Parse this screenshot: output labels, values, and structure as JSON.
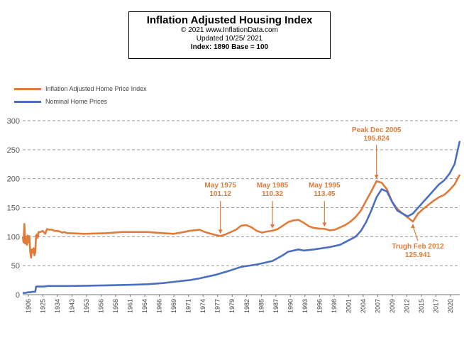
{
  "header": {
    "title": "Inflation Adjusted Housing Index",
    "copyright": "© 2021  www.InflationData.com",
    "updated": "Updated  10/25/ 2021",
    "index_base": "Index: 1890 Base = 100"
  },
  "colors": {
    "real": "#e07b39",
    "nominal": "#4a6fc2",
    "grid": "#9a9a9a"
  },
  "chart_data": {
    "type": "line",
    "ylim": [
      0,
      300
    ],
    "yticks": [
      0,
      50,
      100,
      150,
      200,
      250,
      300
    ],
    "xlim": [
      1890,
      2021
    ],
    "xtick_labels": [
      "1906",
      "1925",
      "1934",
      "1943",
      "1953",
      "1956",
      "1958",
      "1961",
      "1964",
      "1966",
      "1969",
      "1971",
      "1974",
      "1977",
      "1979",
      "1982",
      "1985",
      "1987",
      "1990",
      "1993",
      "1996",
      "1998",
      "2001",
      "2004",
      "2007",
      "2009",
      "2012",
      "2015",
      "2017",
      "2020"
    ],
    "grid": "horizontal dashed",
    "legend_position": "top-left",
    "series": [
      {
        "name": "Inflation Adjusted Home Price Index",
        "color": "#e07b39",
        "points": [
          [
            1890,
            100
          ],
          [
            1891,
            90
          ],
          [
            1892,
            122
          ],
          [
            1893,
            88
          ],
          [
            1894,
            100
          ],
          [
            1895,
            86
          ],
          [
            1896,
            102
          ],
          [
            1897,
            90
          ],
          [
            1898,
            101
          ],
          [
            1899,
            74
          ],
          [
            1900,
            64
          ],
          [
            1901,
            78
          ],
          [
            1902,
            73
          ],
          [
            1903,
            80
          ],
          [
            1904,
            68
          ],
          [
            1905,
            73
          ],
          [
            1906,
            102
          ],
          [
            1907,
            104
          ],
          [
            1908,
            98
          ],
          [
            1909,
            108
          ],
          [
            1911,
            108
          ],
          [
            1914,
            110
          ],
          [
            1917,
            105
          ],
          [
            1919,
            113
          ],
          [
            1922,
            112
          ],
          [
            1925,
            112
          ],
          [
            1928,
            110
          ],
          [
            1931,
            110
          ],
          [
            1934,
            109
          ],
          [
            1937,
            107
          ],
          [
            1940,
            108
          ],
          [
            1943,
            106
          ],
          [
            1946,
            106
          ],
          [
            1949,
            105
          ],
          [
            1953,
            106
          ],
          [
            1956,
            108
          ],
          [
            1958,
            108
          ],
          [
            1961,
            108
          ],
          [
            1964,
            106
          ],
          [
            1966,
            105
          ],
          [
            1968,
            108
          ],
          [
            1969,
            110
          ],
          [
            1971,
            112
          ],
          [
            1972,
            108
          ],
          [
            1974,
            103
          ],
          [
            1975,
            101.12
          ],
          [
            1976,
            104
          ],
          [
            1978,
            112
          ],
          [
            1979,
            119
          ],
          [
            1980,
            120
          ],
          [
            1981,
            116
          ],
          [
            1982,
            110
          ],
          [
            1983,
            107
          ],
          [
            1984,
            109
          ],
          [
            1985,
            110.32
          ],
          [
            1986,
            113
          ],
          [
            1987,
            119
          ],
          [
            1988,
            125
          ],
          [
            1989,
            128
          ],
          [
            1990,
            129
          ],
          [
            1991,
            124
          ],
          [
            1992,
            118
          ],
          [
            1993,
            115
          ],
          [
            1994,
            114
          ],
          [
            1995,
            113.45
          ],
          [
            1996,
            111
          ],
          [
            1997,
            112
          ],
          [
            1998,
            116
          ],
          [
            1999,
            120
          ],
          [
            2000,
            126
          ],
          [
            2001,
            134
          ],
          [
            2002,
            145
          ],
          [
            2003,
            162
          ],
          [
            2004,
            178
          ],
          [
            2005,
            195.824
          ],
          [
            2006,
            193
          ],
          [
            2007,
            182
          ],
          [
            2008,
            160
          ],
          [
            2009,
            148
          ],
          [
            2010,
            140
          ],
          [
            2011,
            133
          ],
          [
            2012,
            125.941
          ],
          [
            2013,
            140
          ],
          [
            2014,
            148
          ],
          [
            2015,
            155
          ],
          [
            2016,
            162
          ],
          [
            2017,
            168
          ],
          [
            2018,
            172
          ],
          [
            2019,
            180
          ],
          [
            2020,
            190
          ],
          [
            2021,
            207
          ]
        ]
      },
      {
        "name": "Nominal Home Prices",
        "color": "#4a6fc2",
        "points": [
          [
            1890,
            3
          ],
          [
            1893,
            3
          ],
          [
            1896,
            4
          ],
          [
            1899,
            4
          ],
          [
            1902,
            5
          ],
          [
            1905,
            5
          ],
          [
            1906,
            14
          ],
          [
            1910,
            14
          ],
          [
            1915,
            14
          ],
          [
            1920,
            15
          ],
          [
            1925,
            15
          ],
          [
            1930,
            15
          ],
          [
            1935,
            15
          ],
          [
            1940,
            15
          ],
          [
            1946,
            15
          ],
          [
            1953,
            16
          ],
          [
            1958,
            17
          ],
          [
            1961,
            18
          ],
          [
            1964,
            20
          ],
          [
            1966,
            22
          ],
          [
            1969,
            25
          ],
          [
            1971,
            28
          ],
          [
            1974,
            34
          ],
          [
            1977,
            42
          ],
          [
            1979,
            48
          ],
          [
            1982,
            52
          ],
          [
            1985,
            58
          ],
          [
            1987,
            68
          ],
          [
            1988,
            74
          ],
          [
            1990,
            78
          ],
          [
            1991,
            76
          ],
          [
            1993,
            78
          ],
          [
            1996,
            82
          ],
          [
            1998,
            86
          ],
          [
            2001,
            100
          ],
          [
            2002,
            110
          ],
          [
            2003,
            125
          ],
          [
            2004,
            145
          ],
          [
            2005,
            168
          ],
          [
            2006,
            182
          ],
          [
            2007,
            178
          ],
          [
            2008,
            160
          ],
          [
            2009,
            145
          ],
          [
            2010,
            140
          ],
          [
            2011,
            135
          ],
          [
            2012,
            140
          ],
          [
            2013,
            150
          ],
          [
            2014,
            160
          ],
          [
            2015,
            170
          ],
          [
            2016,
            180
          ],
          [
            2017,
            190
          ],
          [
            2018,
            197
          ],
          [
            2019,
            208
          ],
          [
            2020,
            225
          ],
          [
            2021,
            265
          ]
        ]
      }
    ],
    "annotations": [
      {
        "lines": [
          "May 1975",
          "101.12"
        ],
        "x": 1975,
        "y": 101.12
      },
      {
        "lines": [
          "May 1985",
          "110.32"
        ],
        "x": 1985,
        "y": 110.32
      },
      {
        "lines": [
          "May 1995",
          "113.45"
        ],
        "x": 1995,
        "y": 113.45
      },
      {
        "lines": [
          "Peak Dec 2005",
          "195.824"
        ],
        "x": 2005,
        "y": 195.824
      },
      {
        "lines": [
          "Trugh Feb 2012",
          "125.941"
        ],
        "x": 2012,
        "y": 125.941
      }
    ]
  }
}
